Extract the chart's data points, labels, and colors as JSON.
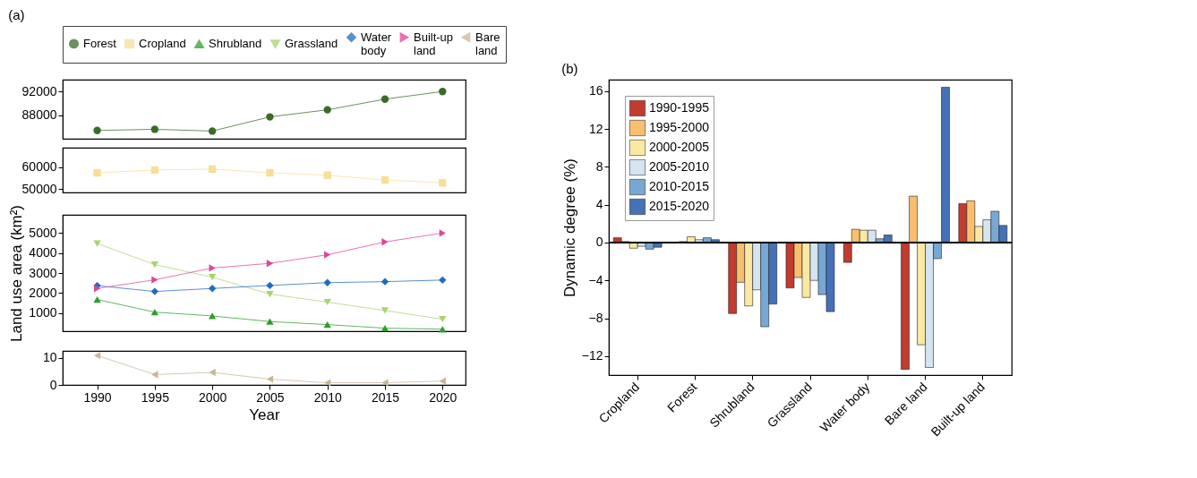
{
  "chart_data": [
    {
      "type": "line",
      "annotations": [
        "(a)"
      ],
      "legend": "top",
      "x": [
        1990,
        1995,
        2000,
        2005,
        2010,
        2015,
        2020
      ],
      "xlim": [
        1987,
        2022
      ],
      "xticks": [
        1990,
        1995,
        2000,
        2005,
        2010,
        2015,
        2020
      ],
      "ylim": [
        84000,
        94000
      ],
      "yticks": [
        88000,
        92000
      ],
      "tick_labels": "y",
      "series": [
        {
          "name": "Forest",
          "color": "#3b6b2a",
          "marker": "circle",
          "values": [
            85400,
            85600,
            85300,
            87700,
            88900,
            90700,
            92000
          ]
        }
      ]
    },
    {
      "type": "line",
      "legend": "top",
      "x": [
        1990,
        1995,
        2000,
        2005,
        2010,
        2015,
        2020
      ],
      "xlim": [
        1987,
        2022
      ],
      "xticks": [
        1990,
        1995,
        2000,
        2005,
        2010,
        2015,
        2020
      ],
      "ylim": [
        48500,
        69000
      ],
      "yticks": [
        50000,
        60000
      ],
      "tick_labels": "y",
      "series": [
        {
          "name": "Cropland",
          "color": "#f7df98",
          "marker": "square",
          "values": [
            57500,
            58800,
            59200,
            57500,
            56400,
            54200,
            52900
          ]
        }
      ]
    },
    {
      "type": "line",
      "legend": "top",
      "ylabel": "Land use area (km²)",
      "x": [
        1990,
        1995,
        2000,
        2005,
        2010,
        2015,
        2020
      ],
      "xlim": [
        1987,
        2022
      ],
      "xticks": [
        1990,
        1995,
        2000,
        2005,
        2010,
        2015,
        2020
      ],
      "ylim": [
        100,
        5900
      ],
      "yticks": [
        1000,
        2000,
        3000,
        4000,
        5000
      ],
      "tick_labels": "y",
      "series": [
        {
          "name": "Shrubland",
          "color": "#2e9e2e",
          "marker": "triangle",
          "values": [
            1680,
            1050,
            860,
            580,
            430,
            250,
            200
          ]
        },
        {
          "name": "Grassland",
          "color": "#a8d46f",
          "marker": "triangle-down",
          "values": [
            4470,
            3420,
            2790,
            1950,
            1550,
            1130,
            700
          ]
        },
        {
          "name": "Water body",
          "color": "#1f6cbf",
          "marker": "diamond",
          "values": [
            2370,
            2080,
            2230,
            2380,
            2520,
            2570,
            2650
          ]
        },
        {
          "name": "Built-up land",
          "color": "#e0449a",
          "marker": "triangle-right",
          "values": [
            2230,
            2660,
            3250,
            3480,
            3910,
            4550,
            4990
          ]
        }
      ]
    },
    {
      "type": "line",
      "legend": "top",
      "xlabel": "Year",
      "x": [
        1990,
        1995,
        2000,
        2005,
        2010,
        2015,
        2020
      ],
      "xlim": [
        1987,
        2022
      ],
      "xticks": [
        1990,
        1995,
        2000,
        2005,
        2010,
        2015,
        2020
      ],
      "ylim": [
        0,
        12.5
      ],
      "yticks": [
        0,
        10
      ],
      "series": [
        {
          "name": "Bare land",
          "color": "#c9b599",
          "marker": "triangle-left",
          "values": [
            10.8,
            3.8,
            4.6,
            2.1,
            0.8,
            0.8,
            1.4
          ]
        }
      ]
    },
    {
      "type": "bar",
      "annotations": [
        "(b)"
      ],
      "ylabel": "Dynamic degree (%)",
      "legend": "top left",
      "categories": [
        "Cropland",
        "Forest",
        "Shrubland",
        "Grassland",
        "Water body",
        "Bare land",
        "Built-up land"
      ],
      "ylim": [
        -14,
        17.2
      ],
      "yticks": [
        -12,
        -8,
        -4,
        0,
        4,
        8,
        12,
        16
      ],
      "ref_lines": [
        {
          "axis": "y",
          "value": 0,
          "color": "#000000"
        }
      ],
      "series": [
        {
          "name": "1990-1995",
          "color": "#c23b2f",
          "values": [
            0.5,
            null,
            -7.5,
            -4.8,
            -2.1,
            -13.4,
            4.1
          ]
        },
        {
          "name": "1995-2000",
          "color": "#f9bf6e",
          "values": [
            0.1,
            0.1,
            -4.2,
            -3.7,
            1.4,
            4.9,
            4.4
          ]
        },
        {
          "name": "2000-2005",
          "color": "#fbe9a3",
          "values": [
            -0.6,
            0.6,
            -6.7,
            -5.8,
            1.3,
            -10.8,
            1.7
          ]
        },
        {
          "name": "2005-2010",
          "color": "#d4e4f1",
          "values": [
            -0.4,
            0.3,
            -5.0,
            -4.0,
            1.3,
            -13.2,
            2.4
          ]
        },
        {
          "name": "2010-2015",
          "color": "#77a8d4",
          "values": [
            -0.7,
            0.5,
            -8.9,
            -5.5,
            0.4,
            -1.7,
            3.3
          ]
        },
        {
          "name": "2015-2020",
          "color": "#4572b7",
          "values": [
            -0.5,
            0.3,
            -6.5,
            -7.3,
            0.8,
            16.4,
            1.8
          ]
        }
      ]
    }
  ]
}
